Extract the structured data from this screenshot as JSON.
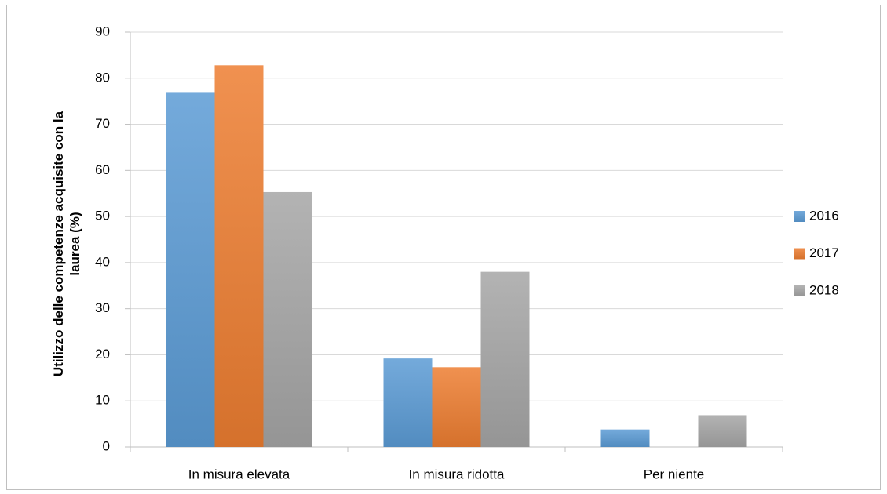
{
  "chart_data": {
    "type": "bar",
    "ylabel": "Utilizzo delle competenze acquisite con la laurea (%)",
    "categories": [
      "In misura elevata",
      "In misura ridotta",
      "Per niente"
    ],
    "series": [
      {
        "name": "2016",
        "color": "#5b9bd5",
        "values": [
          77,
          19.2,
          3.8
        ]
      },
      {
        "name": "2017",
        "color": "#ed7d31",
        "values": [
          82.8,
          17.3,
          0
        ]
      },
      {
        "name": "2018",
        "color": "#a5a5a5",
        "values": [
          55.3,
          38,
          6.9
        ]
      }
    ],
    "ylim": [
      0,
      90
    ],
    "yticks": [
      0,
      10,
      20,
      30,
      40,
      50,
      60,
      70,
      80,
      90
    ],
    "grid": true,
    "legend": "right"
  }
}
